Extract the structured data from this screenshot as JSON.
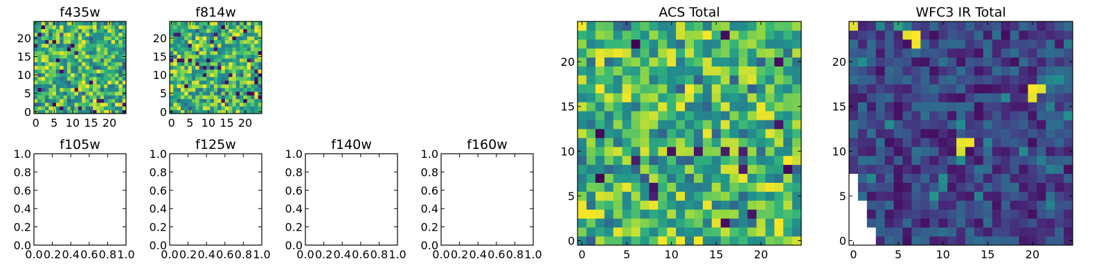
{
  "chart_data": [
    {
      "type": "heatmap",
      "title": "f435w",
      "xlim": [
        -0.5,
        24.5
      ],
      "ylim": [
        -0.5,
        24.5
      ],
      "xticks": [
        0,
        5,
        10,
        15,
        20
      ],
      "yticks": [
        0,
        5,
        10,
        15,
        20
      ],
      "grid_size": [
        25,
        25
      ],
      "colormap": "viridis",
      "pattern": "random-high-with-sparse-dark-pixels",
      "seed": 435,
      "dark_fraction": 0.03
    },
    {
      "type": "heatmap",
      "title": "f814w",
      "xlim": [
        -0.5,
        24.5
      ],
      "ylim": [
        -0.5,
        24.5
      ],
      "xticks": [
        0,
        5,
        10,
        15,
        20
      ],
      "yticks": [
        0,
        5,
        10,
        15,
        20
      ],
      "grid_size": [
        25,
        25
      ],
      "colormap": "viridis",
      "pattern": "random-high-with-sparse-dark-pixels",
      "seed": 814,
      "dark_fraction": 0.04
    },
    {
      "type": "empty",
      "title": "f105w",
      "xlim": [
        0,
        1
      ],
      "ylim": [
        0,
        1
      ],
      "xticks": [
        "0.0",
        "0.2",
        "0.4",
        "0.6",
        "0.8",
        "1.0"
      ],
      "yticks": [
        "0.0",
        "0.2",
        "0.4",
        "0.6",
        "0.8",
        "1.0"
      ]
    },
    {
      "type": "empty",
      "title": "f125w",
      "xlim": [
        0,
        1
      ],
      "ylim": [
        0,
        1
      ],
      "xticks": [
        "0.0",
        "0.2",
        "0.4",
        "0.6",
        "0.8",
        "1.0"
      ],
      "yticks": [
        "0.0",
        "0.2",
        "0.4",
        "0.6",
        "0.8",
        "1.0"
      ]
    },
    {
      "type": "empty",
      "title": "f140w",
      "xlim": [
        0,
        1
      ],
      "ylim": [
        0,
        1
      ],
      "xticks": [
        "0.0",
        "0.2",
        "0.4",
        "0.6",
        "0.8",
        "1.0"
      ],
      "yticks": [
        "0.0",
        "0.2",
        "0.4",
        "0.6",
        "0.8",
        "1.0"
      ]
    },
    {
      "type": "empty",
      "title": "f160w",
      "xlim": [
        0,
        1
      ],
      "ylim": [
        0,
        1
      ],
      "xticks": [
        "0.0",
        "0.2",
        "0.4",
        "0.6",
        "0.8",
        "1.0"
      ],
      "yticks": [
        "0.0",
        "0.2",
        "0.4",
        "0.6",
        "0.8",
        "1.0"
      ]
    },
    {
      "type": "heatmap",
      "title": "ACS Total",
      "xlim": [
        -0.5,
        24.5
      ],
      "ylim": [
        -0.5,
        24.5
      ],
      "xticks": [
        0,
        5,
        10,
        15,
        20
      ],
      "yticks": [
        0,
        5,
        10,
        15,
        20
      ],
      "grid_size": [
        25,
        25
      ],
      "colormap": "viridis",
      "pattern": "random-high-with-sparse-dark-pixels",
      "seed": 1234,
      "dark_fraction": 0.025
    },
    {
      "type": "heatmap",
      "title": "WFC3 IR Total",
      "xlim": [
        -0.5,
        24.5
      ],
      "ylim": [
        -0.5,
        24.5
      ],
      "xticks": [
        0,
        5,
        10,
        15,
        20
      ],
      "yticks": [
        0,
        5,
        10,
        15,
        20
      ],
      "grid_size": [
        25,
        25
      ],
      "colormap": "viridis",
      "pattern": "random-low-with-bright-sources",
      "seed": 140160,
      "bright_sources": [
        {
          "x": 0,
          "y": 24
        },
        {
          "x": 7,
          "y": 22
        },
        {
          "x": 7,
          "y": 23
        },
        {
          "x": 6,
          "y": 23
        },
        {
          "x": 20,
          "y": 17
        },
        {
          "x": 21,
          "y": 17
        },
        {
          "x": 20,
          "y": 16
        },
        {
          "x": 12,
          "y": 11
        },
        {
          "x": 13,
          "y": 11
        },
        {
          "x": 12,
          "y": 10
        }
      ],
      "masked_region": [
        {
          "y_max": 7,
          "x_max": 0
        },
        {
          "y_max": 4,
          "x_max": 1
        },
        {
          "y_max": 1,
          "x_max": 2
        }
      ]
    }
  ]
}
